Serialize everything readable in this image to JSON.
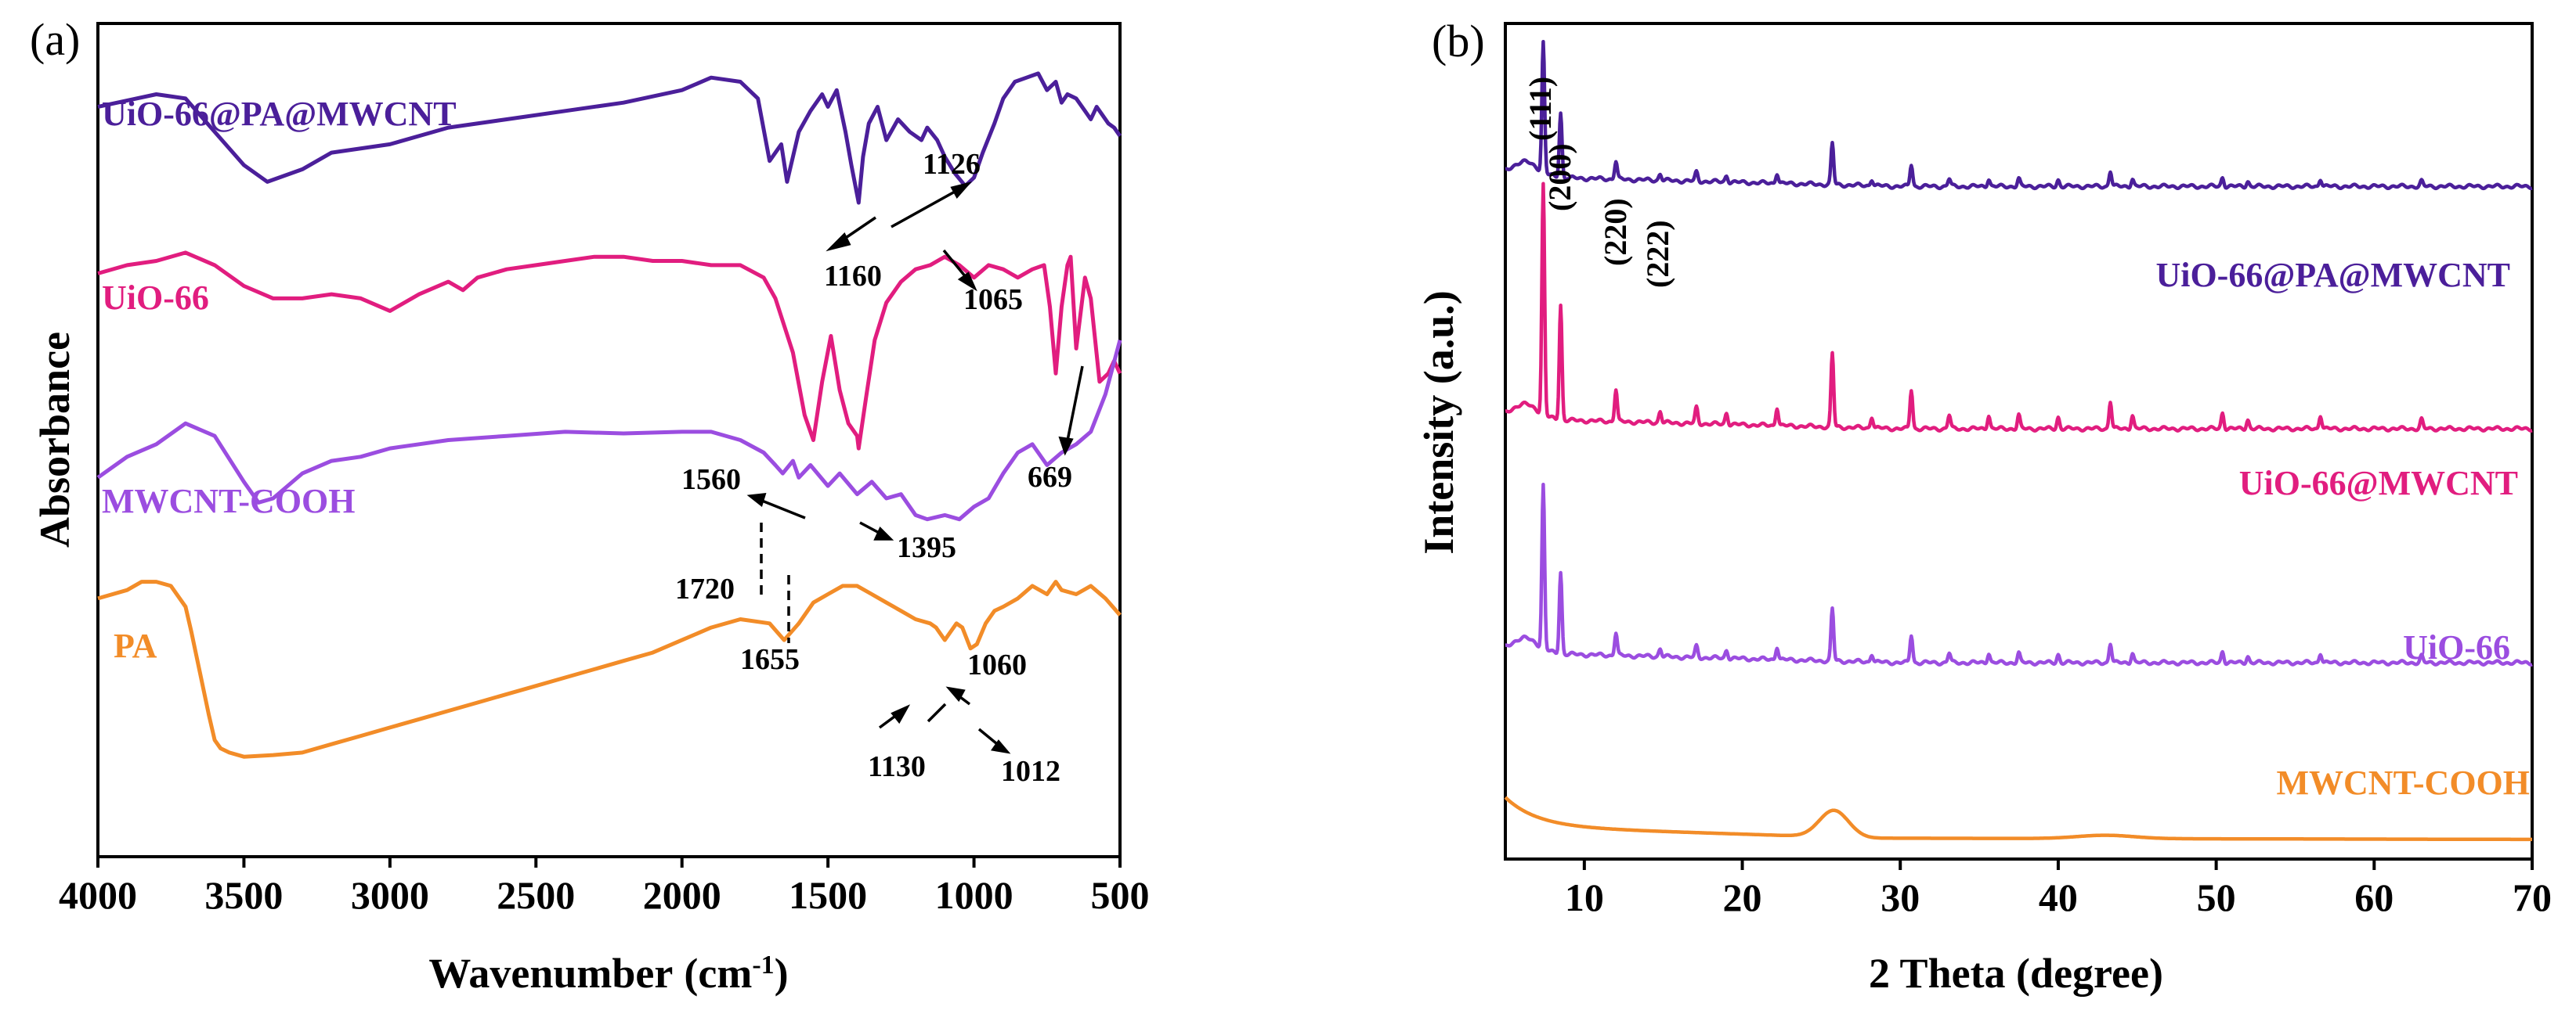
{
  "chart_data": [
    {
      "type": "line",
      "panel_label": "(a)",
      "xlabel": "Wavenumber",
      "xlabel_unit": "(cm",
      "xlabel_unit_sup": "-1",
      "xlabel_unit_close": ")",
      "ylabel": "Absorbance",
      "xlim": [
        4000,
        500
      ],
      "x_reversed": true,
      "ylim": [
        0,
        10
      ],
      "y_ticks_shown": false,
      "x_ticks": [
        "4000",
        "3500",
        "3000",
        "2500",
        "2000",
        "1500",
        "1000",
        "500"
      ],
      "x_tick_values": [
        4000,
        3500,
        3000,
        2500,
        2000,
        1500,
        1000,
        500
      ],
      "series": [
        {
          "name": "UiO-66@PA@MWCNT",
          "color": "#4b1f9a",
          "x": [
            4000,
            3800,
            3700,
            3600,
            3500,
            3420,
            3300,
            3200,
            3000,
            2800,
            2600,
            2400,
            2200,
            2000,
            1900,
            1800,
            1740,
            1700,
            1660,
            1640,
            1600,
            1560,
            1520,
            1500,
            1470,
            1440,
            1420,
            1395,
            1380,
            1360,
            1330,
            1300,
            1260,
            1220,
            1180,
            1160,
            1126,
            1100,
            1065,
            1030,
            1000,
            970,
            930,
            900,
            860,
            820,
            780,
            750,
            720,
            700,
            680,
            650,
            620,
            600,
            580,
            560,
            540,
            520,
            500
          ],
          "y": [
            9.0,
            9.15,
            9.1,
            8.7,
            8.3,
            8.1,
            8.25,
            8.45,
            8.55,
            8.75,
            8.85,
            8.95,
            9.05,
            9.2,
            9.35,
            9.3,
            9.1,
            8.35,
            8.55,
            8.1,
            8.7,
            8.95,
            9.15,
            9.0,
            9.2,
            8.7,
            8.3,
            7.85,
            8.4,
            8.8,
            9.0,
            8.6,
            8.85,
            8.7,
            8.6,
            8.75,
            8.6,
            8.4,
            8.2,
            8.05,
            8.15,
            8.45,
            8.8,
            9.1,
            9.3,
            9.35,
            9.4,
            9.2,
            9.3,
            9.05,
            9.15,
            9.1,
            8.95,
            8.85,
            9.0,
            8.9,
            8.8,
            8.75,
            8.65
          ]
        },
        {
          "name": "UiO-66",
          "color": "#e11d7f",
          "x": [
            4000,
            3900,
            3800,
            3700,
            3600,
            3500,
            3400,
            3300,
            3200,
            3100,
            3000,
            2900,
            2800,
            2750,
            2700,
            2600,
            2500,
            2400,
            2300,
            2200,
            2100,
            2000,
            1900,
            1800,
            1720,
            1680,
            1620,
            1580,
            1550,
            1520,
            1490,
            1460,
            1430,
            1400,
            1395,
            1370,
            1340,
            1300,
            1250,
            1200,
            1150,
            1100,
            1050,
            1000,
            950,
            900,
            850,
            800,
            760,
            740,
            720,
            700,
            680,
            669,
            650,
            620,
            600,
            570,
            540,
            520,
            500
          ],
          "y": [
            7.0,
            7.1,
            7.15,
            7.25,
            7.1,
            6.85,
            6.7,
            6.7,
            6.75,
            6.7,
            6.55,
            6.75,
            6.9,
            6.8,
            6.95,
            7.05,
            7.1,
            7.15,
            7.2,
            7.2,
            7.15,
            7.15,
            7.1,
            7.1,
            6.95,
            6.7,
            6.05,
            5.3,
            5.0,
            5.7,
            6.25,
            5.6,
            5.2,
            5.05,
            4.9,
            5.5,
            6.2,
            6.65,
            6.9,
            7.05,
            7.1,
            7.2,
            7.1,
            6.95,
            7.1,
            7.05,
            6.95,
            7.05,
            7.1,
            6.6,
            5.8,
            6.6,
            7.1,
            7.2,
            6.1,
            6.95,
            6.7,
            5.7,
            5.8,
            5.95,
            5.8
          ]
        },
        {
          "name": "MWCNT-COOH",
          "color": "#9b4de0",
          "x": [
            4000,
            3900,
            3800,
            3700,
            3600,
            3500,
            3450,
            3400,
            3300,
            3200,
            3100,
            3000,
            2900,
            2800,
            2600,
            2400,
            2200,
            2000,
            1900,
            1800,
            1720,
            1680,
            1655,
            1620,
            1600,
            1560,
            1500,
            1460,
            1400,
            1350,
            1300,
            1250,
            1200,
            1160,
            1100,
            1050,
            1000,
            950,
            900,
            850,
            800,
            750,
            700,
            650,
            600,
            550,
            500
          ],
          "y": [
            4.55,
            4.8,
            4.95,
            5.2,
            5.05,
            4.5,
            4.25,
            4.3,
            4.6,
            4.75,
            4.8,
            4.9,
            4.95,
            5.0,
            5.05,
            5.1,
            5.08,
            5.1,
            5.1,
            5.0,
            4.85,
            4.7,
            4.6,
            4.75,
            4.55,
            4.7,
            4.45,
            4.6,
            4.35,
            4.5,
            4.3,
            4.35,
            4.1,
            4.05,
            4.1,
            4.05,
            4.2,
            4.3,
            4.6,
            4.85,
            4.95,
            4.7,
            4.85,
            4.95,
            5.1,
            5.55,
            6.2
          ]
        },
        {
          "name": "PA",
          "color": "#f28c28",
          "x": [
            4000,
            3900,
            3850,
            3800,
            3750,
            3700,
            3680,
            3650,
            3620,
            3600,
            3580,
            3550,
            3500,
            3400,
            3300,
            3200,
            3100,
            3000,
            2900,
            2800,
            2700,
            2600,
            2500,
            2400,
            2300,
            2200,
            2100,
            2000,
            1900,
            1800,
            1700,
            1650,
            1600,
            1550,
            1500,
            1450,
            1400,
            1350,
            1300,
            1250,
            1200,
            1150,
            1130,
            1100,
            1080,
            1060,
            1040,
            1012,
            990,
            960,
            930,
            900,
            850,
            800,
            750,
            720,
            700,
            650,
            600,
            550,
            500
          ],
          "y": [
            3.1,
            3.2,
            3.3,
            3.3,
            3.25,
            3.0,
            2.7,
            2.2,
            1.7,
            1.4,
            1.3,
            1.25,
            1.2,
            1.22,
            1.25,
            1.35,
            1.45,
            1.55,
            1.65,
            1.75,
            1.85,
            1.95,
            2.05,
            2.15,
            2.25,
            2.35,
            2.45,
            2.6,
            2.75,
            2.85,
            2.8,
            2.6,
            2.8,
            3.05,
            3.15,
            3.25,
            3.25,
            3.15,
            3.05,
            2.95,
            2.85,
            2.8,
            2.75,
            2.6,
            2.7,
            2.8,
            2.75,
            2.5,
            2.55,
            2.8,
            2.95,
            3.0,
            3.1,
            3.25,
            3.15,
            3.3,
            3.2,
            3.15,
            3.25,
            3.1,
            2.9
          ]
        }
      ],
      "annotations": [
        "1160",
        "1126",
        "1065",
        "669",
        "1560",
        "1395",
        "1720",
        "1655",
        "1060",
        "1130",
        "1012"
      ]
    },
    {
      "type": "line",
      "panel_label": "(b)",
      "xlabel": "2 Theta (degree)",
      "ylabel": "Intensity (a.u.)",
      "xlim": [
        5,
        70
      ],
      "ylim": [
        0,
        10
      ],
      "y_ticks_shown": false,
      "x_ticks": [
        "10",
        "20",
        "30",
        "40",
        "50",
        "60",
        "70"
      ],
      "x_tick_values": [
        10,
        20,
        30,
        40,
        50,
        60,
        70
      ],
      "hkl_labels": [
        "(111)",
        "(200)",
        "(220)",
        "(222)"
      ],
      "hkl_x": [
        7.4,
        8.5,
        12.0,
        14.8
      ],
      "peaks": [
        {
          "x": 7.4,
          "h": 1.0
        },
        {
          "x": 8.5,
          "h": 0.5
        },
        {
          "x": 12.0,
          "h": 0.14
        },
        {
          "x": 14.8,
          "h": 0.05
        },
        {
          "x": 17.1,
          "h": 0.07
        },
        {
          "x": 19.0,
          "h": 0.05
        },
        {
          "x": 22.2,
          "h": 0.08
        },
        {
          "x": 25.7,
          "h": 0.32
        },
        {
          "x": 28.2,
          "h": 0.05
        },
        {
          "x": 30.7,
          "h": 0.17
        },
        {
          "x": 33.1,
          "h": 0.06
        },
        {
          "x": 35.6,
          "h": 0.06
        },
        {
          "x": 37.5,
          "h": 0.06
        },
        {
          "x": 40.0,
          "h": 0.05
        },
        {
          "x": 43.3,
          "h": 0.12
        },
        {
          "x": 44.7,
          "h": 0.06
        },
        {
          "x": 50.4,
          "h": 0.07
        },
        {
          "x": 52.0,
          "h": 0.04
        },
        {
          "x": 56.6,
          "h": 0.06
        },
        {
          "x": 63.0,
          "h": 0.04
        }
      ],
      "series": [
        {
          "name": "UiO-66@PA@MWCNT",
          "color": "#4b1f9a",
          "baseline": 8.05,
          "scale": 1.55,
          "background": "crystalline"
        },
        {
          "name": "UiO-66@MWCNT",
          "color": "#e11d7f",
          "baseline": 5.15,
          "scale": 2.75,
          "background": "crystalline"
        },
        {
          "name": "UiO-66",
          "color": "#9b4de0",
          "baseline": 2.35,
          "scale": 1.95,
          "background": "crystalline"
        },
        {
          "name": "MWCNT-COOH",
          "color": "#f28c28",
          "baseline": 0.25,
          "scale": 0,
          "background": "amorphous"
        }
      ]
    }
  ]
}
